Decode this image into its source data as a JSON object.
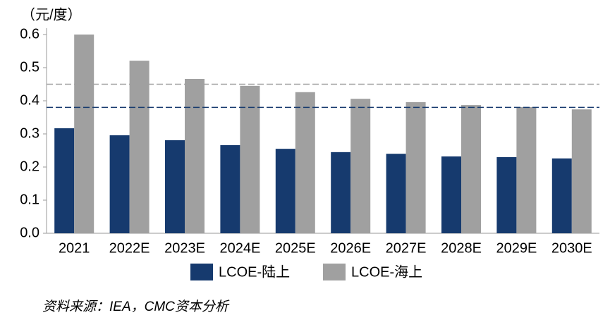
{
  "chart_data": {
    "type": "bar",
    "y_axis_label": "（元/度）",
    "categories": [
      "2021",
      "2022E",
      "2023E",
      "2024E",
      "2025E",
      "2026E",
      "2027E",
      "2028E",
      "2029E",
      "2030E"
    ],
    "series": [
      {
        "name": "LCOE-陆上",
        "color": "#163a6e",
        "values": [
          0.317,
          0.296,
          0.281,
          0.266,
          0.255,
          0.245,
          0.24,
          0.232,
          0.23,
          0.226
        ]
      },
      {
        "name": "LCOE-海上",
        "color": "#a0a0a0",
        "values": [
          0.6,
          0.521,
          0.466,
          0.445,
          0.426,
          0.406,
          0.396,
          0.387,
          0.381,
          0.374
        ]
      }
    ],
    "reference_lines": [
      {
        "value": 0.45,
        "color": "#a0a0a0"
      },
      {
        "value": 0.38,
        "color": "#163a6e"
      }
    ],
    "ylim": [
      0,
      0.6
    ],
    "yticks": [
      {
        "value": 0,
        "label": "0.0"
      },
      0.1,
      0.2,
      0.3,
      0.4,
      0.5,
      0.6
    ],
    "grid": false,
    "legend": "bottom",
    "source": "资料来源：IEA，CMC资本分析"
  }
}
